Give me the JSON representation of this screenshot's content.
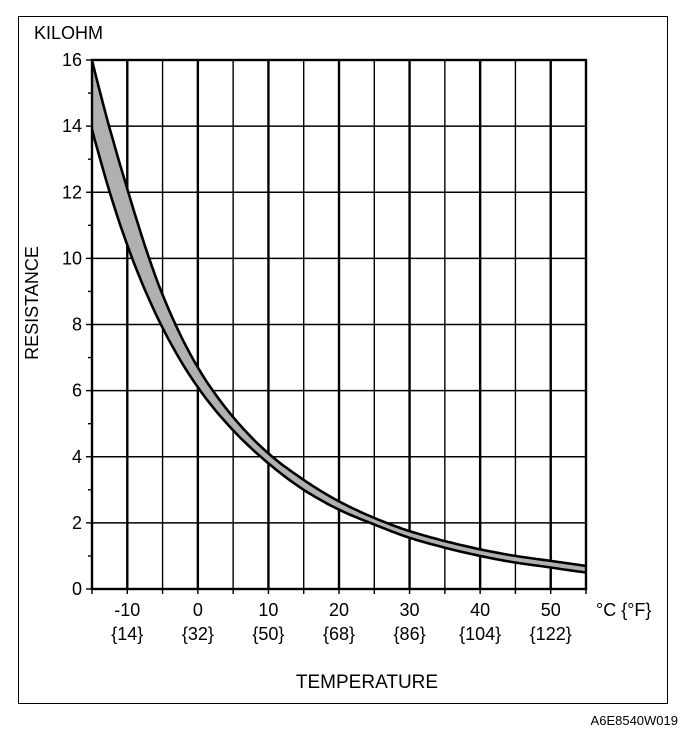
{
  "chart_data": {
    "type": "line",
    "title": "",
    "ylabel": "RESISTANCE",
    "yunit": "KILOHM",
    "xlabel": "TEMPERATURE",
    "xunit": "°C {°F}",
    "xlim": [
      -15,
      55
    ],
    "ylim": [
      0,
      16
    ],
    "grid": true,
    "x_ticks": [
      {
        "value": -10,
        "c": "-10",
        "f": "{14}"
      },
      {
        "value": 0,
        "c": "0",
        "f": "{32}"
      },
      {
        "value": 10,
        "c": "10",
        "f": "{50}"
      },
      {
        "value": 20,
        "c": "20",
        "f": "{68}"
      },
      {
        "value": 30,
        "c": "30",
        "f": "{86}"
      },
      {
        "value": 40,
        "c": "40",
        "f": "{104}"
      },
      {
        "value": 50,
        "c": "50",
        "f": "{122}"
      }
    ],
    "y_ticks": [
      {
        "value": 0,
        "label": "0"
      },
      {
        "value": 2,
        "label": "2"
      },
      {
        "value": 4,
        "label": "4"
      },
      {
        "value": 6,
        "label": "6"
      },
      {
        "value": 8,
        "label": "8"
      },
      {
        "value": 10,
        "label": "10"
      },
      {
        "value": 12,
        "label": "12"
      },
      {
        "value": 14,
        "label": "14"
      },
      {
        "value": 16,
        "label": "16"
      }
    ],
    "band_color": "#b0b0b0",
    "series": [
      {
        "x": [
          -15,
          -10,
          -5,
          0,
          5,
          10,
          15,
          20,
          25,
          30,
          35,
          40,
          45,
          50,
          55
        ],
        "values": [
          16.0,
          12.1,
          8.9,
          6.7,
          5.2,
          4.1,
          3.3,
          2.65,
          2.15,
          1.75,
          1.45,
          1.2,
          1.0,
          0.85,
          0.7
        ]
      },
      {
        "x": [
          -15,
          -10,
          -5,
          0,
          5,
          10,
          15,
          20,
          25,
          30,
          35,
          40,
          45,
          50,
          55
        ],
        "values": [
          13.9,
          10.4,
          7.9,
          6.1,
          4.8,
          3.8,
          3.0,
          2.4,
          1.95,
          1.55,
          1.25,
          1.0,
          0.8,
          0.65,
          0.5
        ]
      }
    ]
  },
  "figure_code": "A6E8540W019"
}
